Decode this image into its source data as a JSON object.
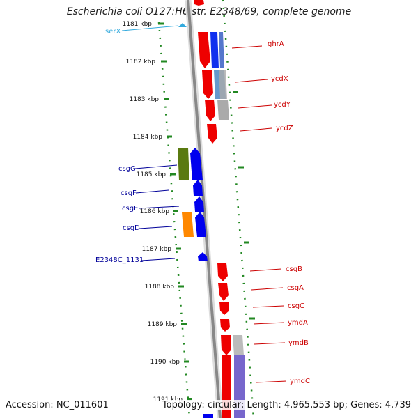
{
  "title": "Escherichia coli O127:H6 str. E2348/69, complete genome",
  "accession": "Accession: NC_011601",
  "topology": "Topology: circular; Length: 4,965,553 bp; Genes: 4,739",
  "colors": {
    "forward_label": "#cc0000",
    "reverse_label": "#000099",
    "rna_label": "#33aadd",
    "tick_green": "#228822",
    "backbone": "#888888"
  },
  "kbp_labels": [
    "1181 kbp",
    "1182 kbp",
    "1183 kbp",
    "1184 kbp",
    "1185 kbp",
    "1186 kbp",
    "1187 kbp",
    "1188 kbp",
    "1189 kbp",
    "1190 kbp",
    "1191 kbp"
  ],
  "genes": {
    "serX": "serX",
    "ghrA": "ghrA",
    "ycdX": "ycdX",
    "ycdY": "ycdY",
    "ycdZ": "ycdZ",
    "csgG": "csgG",
    "csgF": "csgF",
    "csgE": "csgE",
    "csgD": "csgD",
    "E2348C_1131": "E2348C_1131",
    "csgB": "csgB",
    "csgA": "csgA",
    "csgC": "csgC",
    "ymdA": "ymdA",
    "ymdB": "ymdB",
    "ymdC": "ymdC"
  }
}
